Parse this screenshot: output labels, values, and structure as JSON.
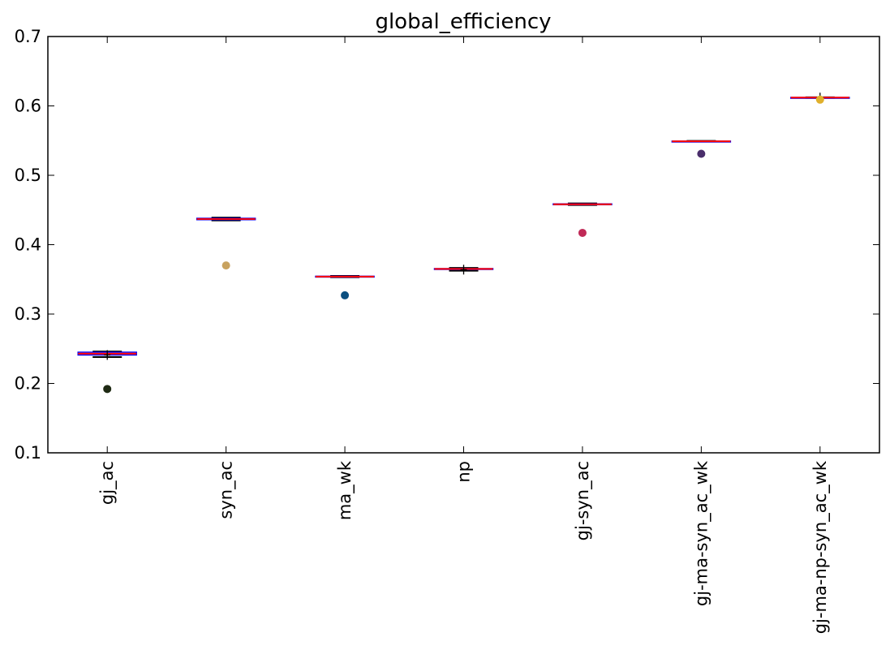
{
  "chart_data": {
    "type": "box",
    "title": "global_efficiency",
    "xlabel": "",
    "ylabel": "",
    "ylim": [
      0.1,
      0.7
    ],
    "yticks": [
      "0.1",
      "0.2",
      "0.3",
      "0.4",
      "0.5",
      "0.6",
      "0.7"
    ],
    "grid": false,
    "categories": [
      "gj_ac",
      "syn_ac",
      "ma_wk",
      "np",
      "gj-syn_ac",
      "gj-ma-syn_ac_wk",
      "gj-ma-np-syn_ac_wk"
    ],
    "boxes": [
      {
        "q1": 0.241,
        "q3": 0.245,
        "median": 0.243,
        "whisker_low": 0.238,
        "whisker_high": 0.246
      },
      {
        "q1": 0.436,
        "q3": 0.438,
        "median": 0.437,
        "whisker_low": 0.435,
        "whisker_high": 0.439
      },
      {
        "q1": 0.3535,
        "q3": 0.3545,
        "median": 0.354,
        "whisker_low": 0.353,
        "whisker_high": 0.355
      },
      {
        "q1": 0.3645,
        "q3": 0.3655,
        "median": 0.365,
        "whisker_low": 0.3625,
        "whisker_high": 0.3665
      },
      {
        "q1": 0.4578,
        "q3": 0.4588,
        "median": 0.4582,
        "whisker_low": 0.4572,
        "whisker_high": 0.4595
      },
      {
        "q1": 0.5488,
        "q3": 0.5492,
        "median": 0.549,
        "whisker_low": 0.5485,
        "whisker_high": 0.5495
      },
      {
        "q1": 0.6118,
        "q3": 0.6122,
        "median": 0.612,
        "whisker_low": 0.6115,
        "whisker_high": 0.6125
      }
    ],
    "flier_marks": [
      {
        "category": "gj_ac",
        "value": 0.241
      },
      {
        "category": "np",
        "value": 0.364
      },
      {
        "category": "gj-ma-np-syn_ac_wk",
        "value": 0.612
      }
    ],
    "points": [
      {
        "category": "gj_ac",
        "value": 0.192,
        "color": "#1f2a14"
      },
      {
        "category": "syn_ac",
        "value": 0.37,
        "color": "#c8a25f"
      },
      {
        "category": "ma_wk",
        "value": 0.327,
        "color": "#0b4f80"
      },
      {
        "category": "gj-syn_ac",
        "value": 0.417,
        "color": "#c02a57"
      },
      {
        "category": "gj-ma-syn_ac_wk",
        "value": 0.531,
        "color": "#4a2e6b"
      },
      {
        "category": "gj-ma-np-syn_ac_wk",
        "value": 0.609,
        "color": "#e0b02c"
      }
    ],
    "colors": {
      "box": "#0000ff",
      "whisker": "#000000",
      "median": "#ff0000",
      "flier": "#000000"
    }
  }
}
